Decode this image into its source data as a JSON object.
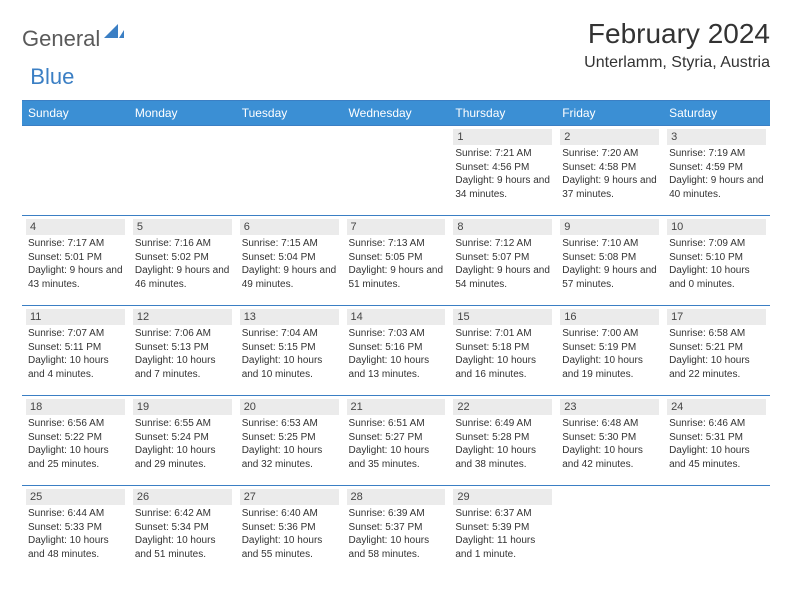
{
  "logo": {
    "text_general": "General",
    "text_blue": "Blue",
    "icon_color": "#3b7fc4"
  },
  "header": {
    "month_title": "February 2024",
    "location": "Unterlamm, Styria, Austria"
  },
  "colors": {
    "header_bg": "#3b8fd4",
    "header_text": "#ffffff",
    "row_border": "#3b7fc4",
    "day_num_bg": "#ebebeb",
    "body_text": "#333333"
  },
  "day_labels": [
    "Sunday",
    "Monday",
    "Tuesday",
    "Wednesday",
    "Thursday",
    "Friday",
    "Saturday"
  ],
  "weeks": [
    [
      null,
      null,
      null,
      null,
      {
        "num": "1",
        "sunrise": "Sunrise: 7:21 AM",
        "sunset": "Sunset: 4:56 PM",
        "daylight": "Daylight: 9 hours and 34 minutes."
      },
      {
        "num": "2",
        "sunrise": "Sunrise: 7:20 AM",
        "sunset": "Sunset: 4:58 PM",
        "daylight": "Daylight: 9 hours and 37 minutes."
      },
      {
        "num": "3",
        "sunrise": "Sunrise: 7:19 AM",
        "sunset": "Sunset: 4:59 PM",
        "daylight": "Daylight: 9 hours and 40 minutes."
      }
    ],
    [
      {
        "num": "4",
        "sunrise": "Sunrise: 7:17 AM",
        "sunset": "Sunset: 5:01 PM",
        "daylight": "Daylight: 9 hours and 43 minutes."
      },
      {
        "num": "5",
        "sunrise": "Sunrise: 7:16 AM",
        "sunset": "Sunset: 5:02 PM",
        "daylight": "Daylight: 9 hours and 46 minutes."
      },
      {
        "num": "6",
        "sunrise": "Sunrise: 7:15 AM",
        "sunset": "Sunset: 5:04 PM",
        "daylight": "Daylight: 9 hours and 49 minutes."
      },
      {
        "num": "7",
        "sunrise": "Sunrise: 7:13 AM",
        "sunset": "Sunset: 5:05 PM",
        "daylight": "Daylight: 9 hours and 51 minutes."
      },
      {
        "num": "8",
        "sunrise": "Sunrise: 7:12 AM",
        "sunset": "Sunset: 5:07 PM",
        "daylight": "Daylight: 9 hours and 54 minutes."
      },
      {
        "num": "9",
        "sunrise": "Sunrise: 7:10 AM",
        "sunset": "Sunset: 5:08 PM",
        "daylight": "Daylight: 9 hours and 57 minutes."
      },
      {
        "num": "10",
        "sunrise": "Sunrise: 7:09 AM",
        "sunset": "Sunset: 5:10 PM",
        "daylight": "Daylight: 10 hours and 0 minutes."
      }
    ],
    [
      {
        "num": "11",
        "sunrise": "Sunrise: 7:07 AM",
        "sunset": "Sunset: 5:11 PM",
        "daylight": "Daylight: 10 hours and 4 minutes."
      },
      {
        "num": "12",
        "sunrise": "Sunrise: 7:06 AM",
        "sunset": "Sunset: 5:13 PM",
        "daylight": "Daylight: 10 hours and 7 minutes."
      },
      {
        "num": "13",
        "sunrise": "Sunrise: 7:04 AM",
        "sunset": "Sunset: 5:15 PM",
        "daylight": "Daylight: 10 hours and 10 minutes."
      },
      {
        "num": "14",
        "sunrise": "Sunrise: 7:03 AM",
        "sunset": "Sunset: 5:16 PM",
        "daylight": "Daylight: 10 hours and 13 minutes."
      },
      {
        "num": "15",
        "sunrise": "Sunrise: 7:01 AM",
        "sunset": "Sunset: 5:18 PM",
        "daylight": "Daylight: 10 hours and 16 minutes."
      },
      {
        "num": "16",
        "sunrise": "Sunrise: 7:00 AM",
        "sunset": "Sunset: 5:19 PM",
        "daylight": "Daylight: 10 hours and 19 minutes."
      },
      {
        "num": "17",
        "sunrise": "Sunrise: 6:58 AM",
        "sunset": "Sunset: 5:21 PM",
        "daylight": "Daylight: 10 hours and 22 minutes."
      }
    ],
    [
      {
        "num": "18",
        "sunrise": "Sunrise: 6:56 AM",
        "sunset": "Sunset: 5:22 PM",
        "daylight": "Daylight: 10 hours and 25 minutes."
      },
      {
        "num": "19",
        "sunrise": "Sunrise: 6:55 AM",
        "sunset": "Sunset: 5:24 PM",
        "daylight": "Daylight: 10 hours and 29 minutes."
      },
      {
        "num": "20",
        "sunrise": "Sunrise: 6:53 AM",
        "sunset": "Sunset: 5:25 PM",
        "daylight": "Daylight: 10 hours and 32 minutes."
      },
      {
        "num": "21",
        "sunrise": "Sunrise: 6:51 AM",
        "sunset": "Sunset: 5:27 PM",
        "daylight": "Daylight: 10 hours and 35 minutes."
      },
      {
        "num": "22",
        "sunrise": "Sunrise: 6:49 AM",
        "sunset": "Sunset: 5:28 PM",
        "daylight": "Daylight: 10 hours and 38 minutes."
      },
      {
        "num": "23",
        "sunrise": "Sunrise: 6:48 AM",
        "sunset": "Sunset: 5:30 PM",
        "daylight": "Daylight: 10 hours and 42 minutes."
      },
      {
        "num": "24",
        "sunrise": "Sunrise: 6:46 AM",
        "sunset": "Sunset: 5:31 PM",
        "daylight": "Daylight: 10 hours and 45 minutes."
      }
    ],
    [
      {
        "num": "25",
        "sunrise": "Sunrise: 6:44 AM",
        "sunset": "Sunset: 5:33 PM",
        "daylight": "Daylight: 10 hours and 48 minutes."
      },
      {
        "num": "26",
        "sunrise": "Sunrise: 6:42 AM",
        "sunset": "Sunset: 5:34 PM",
        "daylight": "Daylight: 10 hours and 51 minutes."
      },
      {
        "num": "27",
        "sunrise": "Sunrise: 6:40 AM",
        "sunset": "Sunset: 5:36 PM",
        "daylight": "Daylight: 10 hours and 55 minutes."
      },
      {
        "num": "28",
        "sunrise": "Sunrise: 6:39 AM",
        "sunset": "Sunset: 5:37 PM",
        "daylight": "Daylight: 10 hours and 58 minutes."
      },
      {
        "num": "29",
        "sunrise": "Sunrise: 6:37 AM",
        "sunset": "Sunset: 5:39 PM",
        "daylight": "Daylight: 11 hours and 1 minute."
      },
      null,
      null
    ]
  ]
}
